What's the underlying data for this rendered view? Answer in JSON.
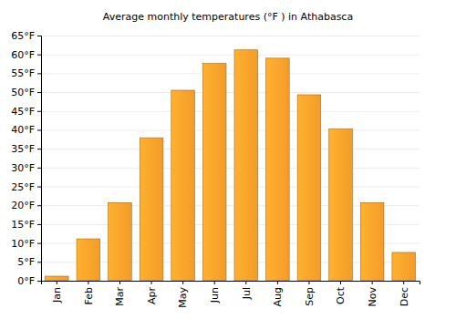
{
  "chart_data": {
    "type": "bar",
    "title": "Average monthly temperatures (°F ) in Athabasca",
    "categories": [
      "Jan",
      "Feb",
      "Mar",
      "Apr",
      "May",
      "Jun",
      "Jul",
      "Aug",
      "Sep",
      "Oct",
      "Nov",
      "Dec"
    ],
    "values": [
      1.2,
      11.1,
      20.7,
      37.9,
      50.5,
      57.6,
      61.2,
      59.0,
      49.3,
      40.3,
      20.7,
      7.5
    ],
    "color": "#fca22b",
    "ylim": [
      0,
      65
    ],
    "yticks": [
      {
        "value": 0,
        "label": "0°F"
      },
      {
        "value": 5,
        "label": "5°F"
      },
      {
        "value": 10,
        "label": "10°F"
      },
      {
        "value": 15,
        "label": "15°F"
      },
      {
        "value": 20,
        "label": "20°F"
      },
      {
        "value": 25,
        "label": "25°F"
      },
      {
        "value": 30,
        "label": "30°F"
      },
      {
        "value": 35,
        "label": "35°F"
      },
      {
        "value": 40,
        "label": "40°F"
      },
      {
        "value": 45,
        "label": "45°F"
      },
      {
        "value": 50,
        "label": "50°F"
      },
      {
        "value": 55,
        "label": "55°F"
      },
      {
        "value": 60,
        "label": "60°F"
      },
      {
        "value": 65,
        "label": "65°F"
      }
    ],
    "grid": true
  }
}
